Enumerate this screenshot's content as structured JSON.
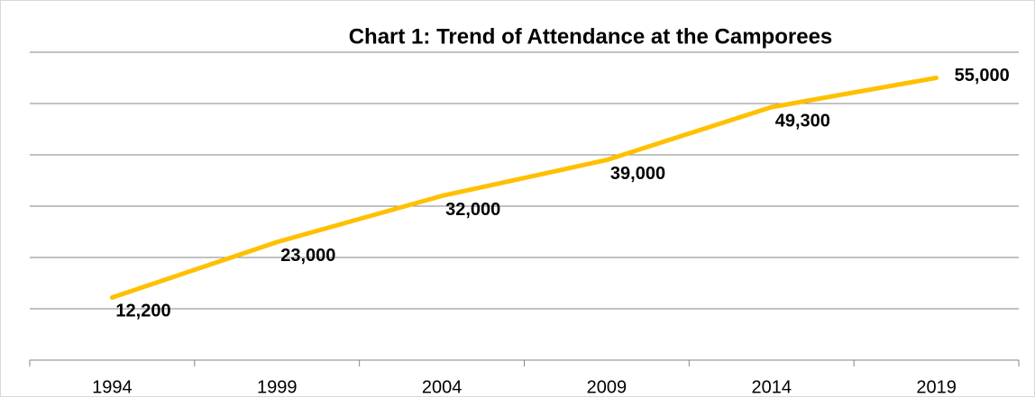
{
  "chart_data": {
    "type": "line",
    "title": "Chart 1: Trend of Attendance at the Camporees",
    "categories": [
      "1994",
      "1999",
      "2004",
      "2009",
      "2014",
      "2019"
    ],
    "series": [
      {
        "name": "Attendance",
        "color": "#ffc000",
        "values": [
          12200,
          23000,
          32000,
          39000,
          49300,
          55000
        ],
        "value_labels": [
          "12,200",
          "23,000",
          "32,000",
          "39,000",
          "49,300",
          "55,000"
        ]
      }
    ],
    "ylim": [
      0,
      60000
    ],
    "yticks": [
      0,
      10000,
      20000,
      30000,
      40000,
      50000,
      60000
    ],
    "grid": true
  }
}
